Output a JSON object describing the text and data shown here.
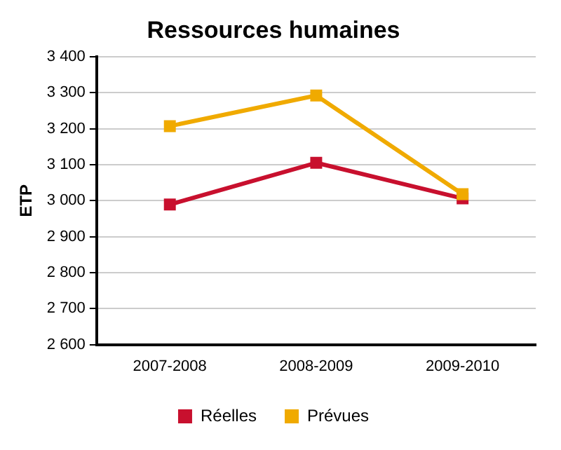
{
  "chart_data": {
    "type": "line",
    "title": "Ressources humaines",
    "ylabel": "ETP",
    "categories": [
      "2007-2008",
      "2008-2009",
      "2009-2010"
    ],
    "series": [
      {
        "name": "Réelles",
        "color": "#c8102e",
        "values": [
          2989,
          3105,
          3006
        ]
      },
      {
        "name": "Prévues",
        "color": "#f0aa00",
        "values": [
          3207,
          3292,
          3018
        ]
      }
    ],
    "ylim": [
      2600,
      3400
    ],
    "yticks": [
      {
        "value": 2600,
        "label": "2 600"
      },
      {
        "value": 2700,
        "label": "2 700"
      },
      {
        "value": 2800,
        "label": "2 800"
      },
      {
        "value": 2900,
        "label": "2 900"
      },
      {
        "value": 3000,
        "label": "3 000"
      },
      {
        "value": 3100,
        "label": "3 100"
      },
      {
        "value": 3200,
        "label": "3 200"
      },
      {
        "value": 3300,
        "label": "3 300"
      },
      {
        "value": 3400,
        "label": "3 400"
      }
    ],
    "grid": "y",
    "legend": "bottom",
    "marker": "square",
    "line_style": "solid"
  }
}
